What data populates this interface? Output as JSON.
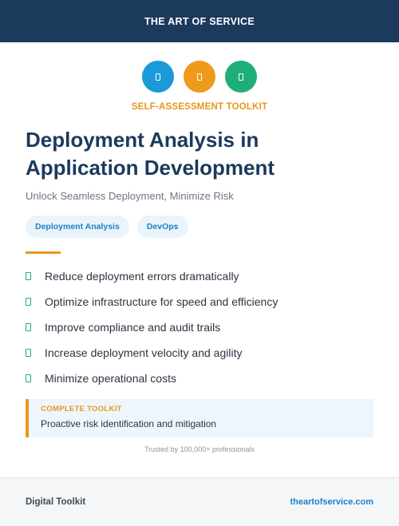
{
  "header": {
    "brand": "THE ART OF SERVICE"
  },
  "icons": [
    {
      "name": "document-icon",
      "color": "#1a9ad9"
    },
    {
      "name": "document-icon",
      "color": "#ee9a1b"
    },
    {
      "name": "document-icon",
      "color": "#1fae77"
    }
  ],
  "kicker": "SELF-ASSESSMENT TOOLKIT",
  "title": "Deployment Analysis in Application Development",
  "subtitle": "Unlock Seamless Deployment, Minimize Risk",
  "tags": [
    "Deployment Analysis",
    "DevOps"
  ],
  "benefits": [
    "Reduce deployment errors dramatically",
    "Optimize infrastructure for speed and efficiency",
    "Improve compliance and audit trails",
    "Increase deployment velocity and agility",
    "Minimize operational costs"
  ],
  "callout": {
    "label": "COMPLETE TOOLKIT",
    "text": "Proactive risk identification and mitigation"
  },
  "trust": "Trusted by 100,000+ professionals",
  "footer": {
    "left": "Digital Toolkit",
    "right": "theartofservice.com"
  },
  "colors": {
    "navy": "#1b3a5c",
    "orange": "#e8961e",
    "green": "#1fae77",
    "blue": "#1f7fc4"
  }
}
